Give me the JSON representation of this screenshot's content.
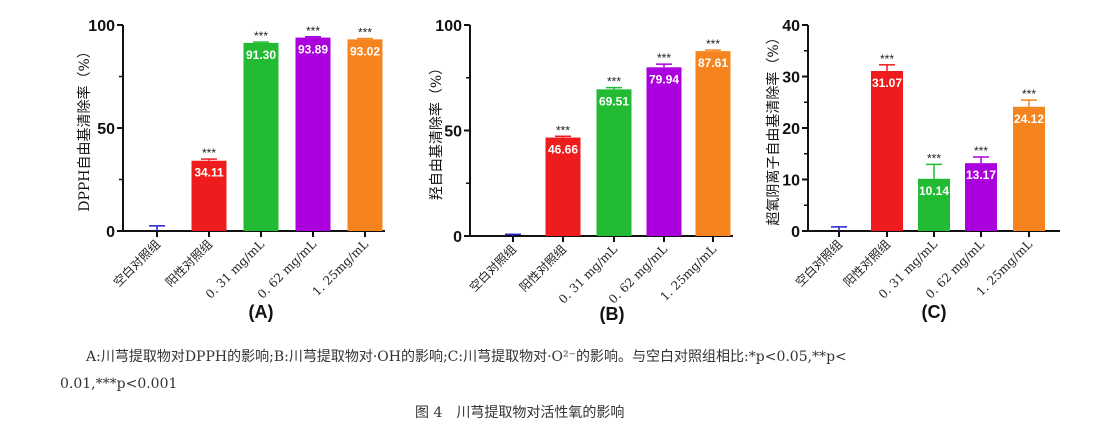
{
  "colors": {
    "blank": "#2222cc",
    "positive": "#ee1c1c",
    "c031": "#22bb33",
    "c062": "#aa00dd",
    "c125": "#f5841f"
  },
  "chart_data": [
    {
      "type": "bar",
      "panel": "(A)",
      "ylabel": "DPPH自由基清除率（%）",
      "ylim": [
        0,
        100
      ],
      "yticks": [
        "0",
        "50",
        "100"
      ],
      "ytick_values": [
        0,
        50,
        100
      ],
      "categories": [
        "空白对照组",
        "阳性对照组",
        "0. 31  mg/mL",
        "0. 62  mg/mL",
        "1. 25mg/mL"
      ],
      "values": [
        0,
        34.11,
        91.3,
        93.89,
        93.02
      ],
      "errors": [
        2.5,
        0.8,
        0.4,
        0.4,
        0.4
      ],
      "labels": [
        "",
        "34.11",
        "91.30",
        "93.89",
        "93.02"
      ],
      "significance": [
        "",
        "***",
        "***",
        "***",
        "***"
      ]
    },
    {
      "type": "bar",
      "panel": "(B)",
      "ylabel": "羟自由基清除率（%）",
      "ylim": [
        0,
        100
      ],
      "yticks": [
        "0",
        "50",
        "100"
      ],
      "ytick_values": [
        0,
        50,
        100
      ],
      "categories": [
        "空白对照组",
        "阳性对照组",
        "0. 31  mg/mL",
        "0. 62  mg/mL",
        "1. 25mg/mL"
      ],
      "values": [
        0,
        46.66,
        69.51,
        79.94,
        87.61
      ],
      "errors": [
        0.8,
        0.6,
        0.8,
        1.5,
        0.5
      ],
      "labels": [
        "",
        "46.66",
        "69.51",
        "79.94",
        "87.61"
      ],
      "significance": [
        "",
        "***",
        "***",
        "***",
        "***"
      ]
    },
    {
      "type": "bar",
      "panel": "(C)",
      "ylabel": "超氧阴离子自由基清除率（%）",
      "ylim": [
        0,
        40
      ],
      "yticks": [
        "0",
        "10",
        "20",
        "30",
        "40"
      ],
      "ytick_values": [
        0,
        10,
        20,
        30,
        40
      ],
      "categories": [
        "空白对照组",
        "阳性对照组",
        "0. 31  mg/mL",
        "0. 62  mg/mL",
        "1. 25mg/mL"
      ],
      "values": [
        0,
        31.07,
        10.14,
        13.17,
        24.12
      ],
      "errors": [
        0.8,
        1.2,
        2.8,
        1.2,
        1.3
      ],
      "labels": [
        "",
        "31.07",
        "10.14",
        "13.17",
        "24.12"
      ],
      "significance": [
        "",
        "***",
        "***",
        "***",
        "***"
      ]
    }
  ],
  "caption": {
    "line1": "A:川芎提取物对DPPH的影响;B:川芎提取物对·OH的影响;C:川芎提取物对·O²⁻的影响。与空白对照组相比:*p<0.05,**p<",
    "line2": "0.01,***p<0.001",
    "title": "图 4　川芎提取物对活性氧的影响"
  }
}
